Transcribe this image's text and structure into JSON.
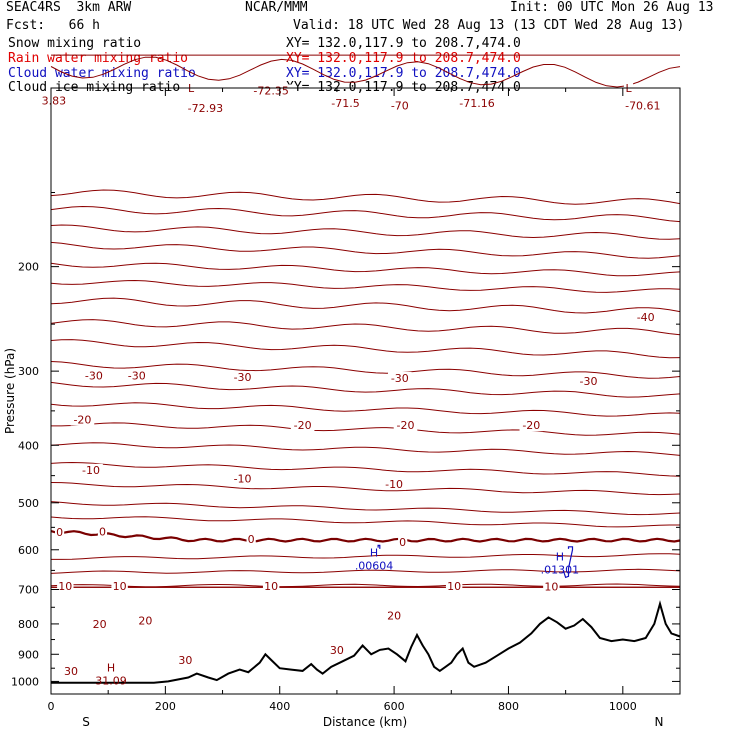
{
  "header": {
    "model": "SEAC4RS  3km ARW",
    "producer": "NCAR/MMM",
    "init": "Init: 00 UTC Mon 26 Aug 13",
    "fcst": "Fcst:   66 h",
    "valid": "Valid: 18 UTC Wed 28 Aug 13 (13 CDT Wed 28 Aug 13)",
    "fields": [
      {
        "name": "Snow mixing ratio",
        "color": "#000000",
        "xy": "XY= 132.0,117.9 to 208.7,474.0"
      },
      {
        "name": "Rain water mixing ratio",
        "color": "#e00000",
        "xy": "XY= 132.0,117.9 to 208.7,474.0"
      },
      {
        "name": "Cloud water mixing ratio",
        "color": "#1010c0",
        "xy": "XY= 132.0,117.9 to 208.7,474.0"
      },
      {
        "name": "Cloud ice mixing ratio",
        "color": "#000000",
        "xy": "XY= 132.0,117.9 to 208.7,474.0"
      }
    ]
  },
  "chart_data": {
    "type": "line",
    "xlabel": "Distance (km)",
    "ylabel": "Pressure (hPa)",
    "xlim": [
      0,
      1100
    ],
    "ylim": [
      1050,
      100
    ],
    "y_scale": "log",
    "x_ticks": [
      0,
      200,
      400,
      600,
      800,
      1000
    ],
    "y_ticks": [
      200,
      300,
      400,
      500,
      600,
      700,
      800,
      900,
      1000
    ],
    "x_end_labels": {
      "left": "S",
      "right": "N"
    },
    "contour_color": "#8b0000",
    "freezing_level_color": "#7a0000",
    "terrain_color": "#000000",
    "cloud_color": "#1010c0",
    "contour_labels": [
      {
        "text": "3.83",
        "x": 5,
        "p": 105
      },
      {
        "text": "L",
        "x": 245,
        "p": 100
      },
      {
        "text": "-72.93",
        "x": 270,
        "p": 108
      },
      {
        "text": "-72.35",
        "x": 385,
        "p": 101
      },
      {
        "text": "-71.5",
        "x": 515,
        "p": 106
      },
      {
        "text": "-70",
        "x": 610,
        "p": 107
      },
      {
        "text": "-71.16",
        "x": 745,
        "p": 106
      },
      {
        "text": "L",
        "x": 1010,
        "p": 100
      },
      {
        "text": "-70.61",
        "x": 1035,
        "p": 107
      },
      {
        "text": "-40",
        "x": 1040,
        "p": 243
      },
      {
        "text": "-30",
        "x": 75,
        "p": 305
      },
      {
        "text": "-30",
        "x": 150,
        "p": 305
      },
      {
        "text": "-30",
        "x": 335,
        "p": 307
      },
      {
        "text": "-30",
        "x": 610,
        "p": 308
      },
      {
        "text": "-30",
        "x": 940,
        "p": 312
      },
      {
        "text": "-20",
        "x": 55,
        "p": 362
      },
      {
        "text": "-20",
        "x": 440,
        "p": 370
      },
      {
        "text": "-20",
        "x": 620,
        "p": 370
      },
      {
        "text": "-20",
        "x": 840,
        "p": 370
      },
      {
        "text": "-10",
        "x": 70,
        "p": 440
      },
      {
        "text": "-10",
        "x": 335,
        "p": 455
      },
      {
        "text": "-10",
        "x": 600,
        "p": 465
      },
      {
        "text": "0",
        "x": 15,
        "p": 560
      },
      {
        "text": "0",
        "x": 90,
        "p": 559
      },
      {
        "text": "0",
        "x": 350,
        "p": 575
      },
      {
        "text": "0",
        "x": 615,
        "p": 582
      },
      {
        "text": "10",
        "x": 25,
        "p": 690
      },
      {
        "text": "10",
        "x": 120,
        "p": 690
      },
      {
        "text": "10",
        "x": 385,
        "p": 690
      },
      {
        "text": "10",
        "x": 705,
        "p": 690
      },
      {
        "text": "10",
        "x": 875,
        "p": 692
      },
      {
        "text": "20",
        "x": 85,
        "p": 800
      },
      {
        "text": "20",
        "x": 165,
        "p": 790
      },
      {
        "text": "20",
        "x": 600,
        "p": 775
      },
      {
        "text": "30",
        "x": 35,
        "p": 960
      },
      {
        "text": "30",
        "x": 235,
        "p": 920
      },
      {
        "text": "30",
        "x": 500,
        "p": 885
      }
    ],
    "extrema": [
      {
        "kind": "H",
        "text": "31.09",
        "x": 105,
        "p": 977,
        "color": "#8b0000"
      },
      {
        "kind": "H",
        "text": ".00604",
        "x": 565,
        "p": 625,
        "color": "#1010c0"
      },
      {
        "kind": "H",
        "text": ".01301",
        "x": 890,
        "p": 635,
        "color": "#1010c0"
      }
    ]
  }
}
